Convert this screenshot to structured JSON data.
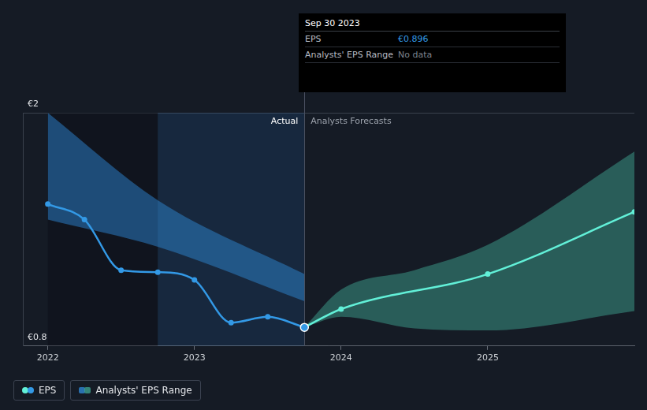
{
  "chart_data": {
    "type": "line",
    "xlim": [
      2021.83,
      2026
    ],
    "xticks": [
      2022,
      2023,
      2024,
      2025
    ],
    "ylim": [
      0.8,
      2
    ],
    "yticks": [
      {
        "value": 0.8,
        "label": "€0.8"
      },
      {
        "value": 2,
        "label": "€2"
      }
    ],
    "grid": true,
    "legend": "bottom-left",
    "legend_labels": [
      "EPS",
      "Analysts' EPS Range"
    ],
    "series": [
      {
        "name": "Actual",
        "color": "#3399e6",
        "marker": "circle",
        "x": [
          2022,
          2022.25,
          2022.5,
          2022.75,
          2023,
          2023.25,
          2023.5,
          2023.75
        ],
        "values": [
          1.53,
          1.45,
          1.19,
          1.18,
          1.14,
          0.92,
          0.95,
          0.896
        ]
      },
      {
        "name": "Analysts Forecasts",
        "color": "#62f0d8",
        "marker": "circle",
        "x": [
          2023.75,
          2024,
          2025,
          2026
        ],
        "values": [
          0.896,
          0.99,
          1.17,
          1.49
        ]
      }
    ],
    "ranges": [
      {
        "name": "Actual",
        "color": "#2e86d1",
        "x": [
          2022,
          2022.75,
          2023.75
        ],
        "low": [
          1.45,
          1.31,
          1.03
        ],
        "high": [
          2.0,
          1.55,
          1.17
        ]
      },
      {
        "name": "Analysts Forecasts",
        "color": "#3d9f8d",
        "x": [
          2023.75,
          2024,
          2024.5,
          2025,
          2026
        ],
        "low": [
          0.896,
          0.95,
          0.89,
          0.88,
          0.98
        ],
        "high": [
          0.896,
          1.09,
          1.19,
          1.32,
          1.8
        ]
      }
    ],
    "tooltip": {
      "title": "Sep 30 2023",
      "rows": [
        {
          "label": "EPS",
          "value": "€0.896"
        },
        {
          "label": "Analysts' EPS Range",
          "value": "No data"
        }
      ]
    }
  }
}
